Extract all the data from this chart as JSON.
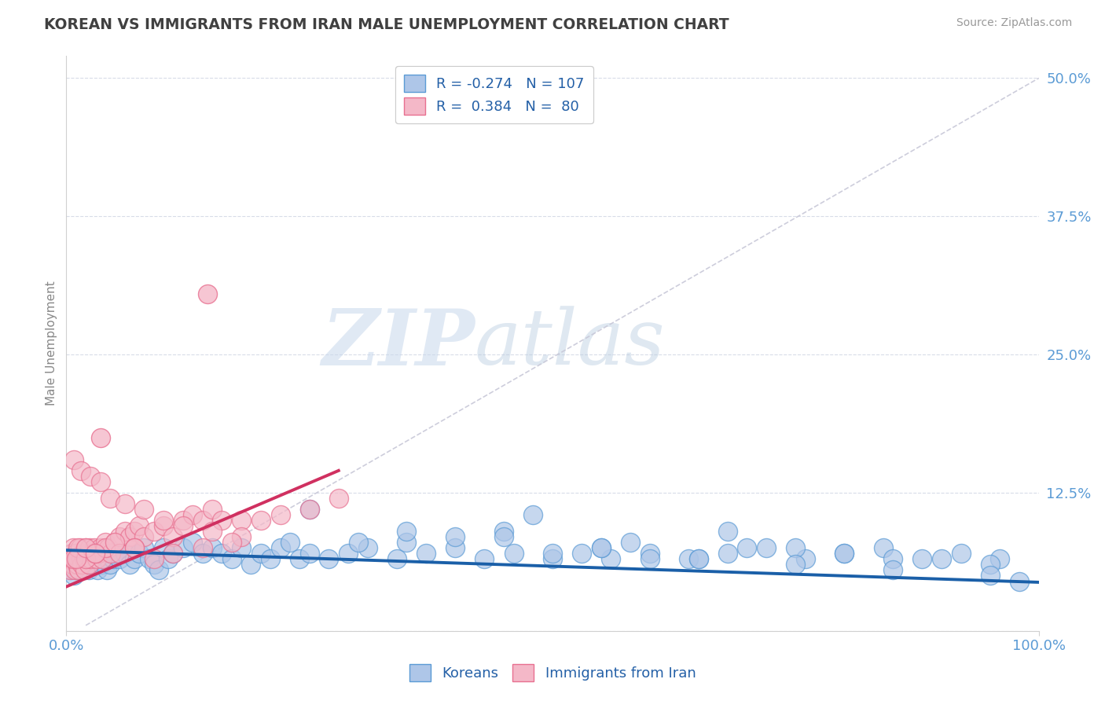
{
  "title": "KOREAN VS IMMIGRANTS FROM IRAN MALE UNEMPLOYMENT CORRELATION CHART",
  "source_text": "Source: ZipAtlas.com",
  "ylabel": "Male Unemployment",
  "xlim": [
    0,
    1.0
  ],
  "ylim": [
    0.0,
    0.52
  ],
  "yticks": [
    0.0,
    0.125,
    0.25,
    0.375,
    0.5
  ],
  "ytick_labels": [
    "",
    "12.5%",
    "25.0%",
    "37.5%",
    "50.0%"
  ],
  "xtick_vals": [
    0.0,
    1.0
  ],
  "xtick_labels": [
    "0.0%",
    "100.0%"
  ],
  "watermark_zip": "ZIP",
  "watermark_atlas": "atlas",
  "blue_color": "#5b9bd5",
  "blue_fill": "#aec6e8",
  "pink_color": "#e87090",
  "pink_fill": "#f4b8c8",
  "trend_blue": "#1a5fa8",
  "trend_pink": "#d03060",
  "trend_gray_color": "#c8c8d8",
  "title_color": "#404040",
  "axis_label_color": "#5b9bd5",
  "background_color": "#ffffff",
  "grid_color": "#d8dce8",
  "koreans_x": [
    0.003,
    0.005,
    0.006,
    0.007,
    0.008,
    0.009,
    0.01,
    0.011,
    0.012,
    0.013,
    0.014,
    0.015,
    0.016,
    0.017,
    0.018,
    0.019,
    0.02,
    0.021,
    0.022,
    0.023,
    0.024,
    0.025,
    0.027,
    0.028,
    0.03,
    0.032,
    0.034,
    0.036,
    0.038,
    0.04,
    0.042,
    0.045,
    0.048,
    0.05,
    0.055,
    0.06,
    0.065,
    0.07,
    0.075,
    0.08,
    0.085,
    0.09,
    0.095,
    0.1,
    0.105,
    0.11,
    0.12,
    0.13,
    0.14,
    0.15,
    0.16,
    0.17,
    0.18,
    0.19,
    0.2,
    0.21,
    0.22,
    0.23,
    0.24,
    0.25,
    0.27,
    0.29,
    0.31,
    0.34,
    0.37,
    0.4,
    0.43,
    0.46,
    0.5,
    0.53,
    0.56,
    0.6,
    0.64,
    0.68,
    0.72,
    0.76,
    0.8,
    0.84,
    0.88,
    0.92,
    0.96,
    0.35,
    0.45,
    0.55,
    0.65,
    0.75,
    0.85,
    0.95,
    0.3,
    0.4,
    0.5,
    0.6,
    0.7,
    0.8,
    0.9,
    0.25,
    0.35,
    0.45,
    0.55,
    0.65,
    0.75,
    0.85,
    0.95,
    0.98,
    0.48,
    0.58,
    0.68
  ],
  "koreans_y": [
    0.065,
    0.055,
    0.07,
    0.06,
    0.05,
    0.065,
    0.07,
    0.055,
    0.06,
    0.07,
    0.065,
    0.055,
    0.06,
    0.07,
    0.065,
    0.055,
    0.07,
    0.06,
    0.065,
    0.055,
    0.07,
    0.065,
    0.06,
    0.07,
    0.065,
    0.055,
    0.07,
    0.06,
    0.065,
    0.07,
    0.055,
    0.06,
    0.065,
    0.07,
    0.065,
    0.07,
    0.06,
    0.065,
    0.07,
    0.075,
    0.065,
    0.06,
    0.055,
    0.075,
    0.065,
    0.07,
    0.075,
    0.08,
    0.07,
    0.075,
    0.07,
    0.065,
    0.075,
    0.06,
    0.07,
    0.065,
    0.075,
    0.08,
    0.065,
    0.07,
    0.065,
    0.07,
    0.075,
    0.065,
    0.07,
    0.075,
    0.065,
    0.07,
    0.065,
    0.07,
    0.065,
    0.07,
    0.065,
    0.07,
    0.075,
    0.065,
    0.07,
    0.075,
    0.065,
    0.07,
    0.065,
    0.08,
    0.09,
    0.075,
    0.065,
    0.075,
    0.065,
    0.06,
    0.08,
    0.085,
    0.07,
    0.065,
    0.075,
    0.07,
    0.065,
    0.11,
    0.09,
    0.085,
    0.075,
    0.065,
    0.06,
    0.055,
    0.05,
    0.045,
    0.105,
    0.08,
    0.09
  ],
  "iran_x": [
    0.003,
    0.004,
    0.005,
    0.006,
    0.007,
    0.008,
    0.009,
    0.01,
    0.011,
    0.012,
    0.013,
    0.014,
    0.015,
    0.016,
    0.017,
    0.018,
    0.019,
    0.02,
    0.021,
    0.022,
    0.023,
    0.024,
    0.025,
    0.027,
    0.029,
    0.031,
    0.033,
    0.035,
    0.037,
    0.04,
    0.043,
    0.046,
    0.05,
    0.055,
    0.06,
    0.065,
    0.07,
    0.075,
    0.08,
    0.09,
    0.1,
    0.11,
    0.12,
    0.13,
    0.14,
    0.15,
    0.16,
    0.18,
    0.2,
    0.22,
    0.25,
    0.28,
    0.008,
    0.015,
    0.025,
    0.035,
    0.045,
    0.06,
    0.08,
    0.1,
    0.12,
    0.15,
    0.18,
    0.007,
    0.012,
    0.02,
    0.03,
    0.04,
    0.055,
    0.07,
    0.09,
    0.11,
    0.14,
    0.17,
    0.01,
    0.02,
    0.03,
    0.05,
    0.07
  ],
  "iran_y": [
    0.065,
    0.055,
    0.07,
    0.06,
    0.075,
    0.065,
    0.055,
    0.07,
    0.06,
    0.065,
    0.055,
    0.075,
    0.065,
    0.06,
    0.07,
    0.065,
    0.055,
    0.075,
    0.065,
    0.07,
    0.06,
    0.075,
    0.065,
    0.07,
    0.075,
    0.065,
    0.07,
    0.075,
    0.065,
    0.08,
    0.075,
    0.07,
    0.08,
    0.085,
    0.09,
    0.085,
    0.09,
    0.095,
    0.085,
    0.09,
    0.095,
    0.085,
    0.1,
    0.105,
    0.1,
    0.11,
    0.1,
    0.1,
    0.1,
    0.105,
    0.11,
    0.12,
    0.155,
    0.145,
    0.14,
    0.135,
    0.12,
    0.115,
    0.11,
    0.1,
    0.095,
    0.09,
    0.085,
    0.065,
    0.075,
    0.065,
    0.07,
    0.075,
    0.07,
    0.075,
    0.065,
    0.07,
    0.075,
    0.08,
    0.065,
    0.075,
    0.07,
    0.08,
    0.075
  ],
  "iran_outlier_x": [
    0.145
  ],
  "iran_outlier_y": [
    0.305
  ],
  "iran_outlier2_x": [
    0.035
  ],
  "iran_outlier2_y": [
    0.175
  ],
  "blue_trend_x0": 0.0,
  "blue_trend_y0": 0.073,
  "blue_trend_x1": 1.0,
  "blue_trend_y1": 0.044,
  "pink_trend_x0": 0.0,
  "pink_trend_y0": 0.04,
  "pink_trend_x1": 0.28,
  "pink_trend_y1": 0.145,
  "gray_trend_x0": 0.02,
  "gray_trend_y0": 0.005,
  "gray_trend_x1": 1.0,
  "gray_trend_y1": 0.5
}
